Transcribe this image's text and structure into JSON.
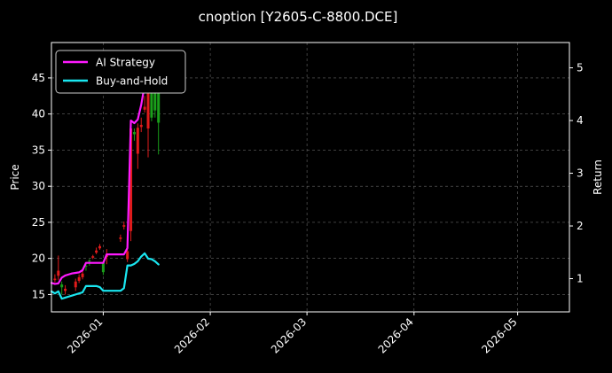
{
  "chart_data": {
    "type": "candlestick+line",
    "title": "cnoption [Y2605-C-8800.DCE]",
    "xlabel": "",
    "ylabel": "Price",
    "ylabel_right": "Return",
    "x_range": [
      "2025-12-17",
      "2026-05-16"
    ],
    "ylim": [
      12.6,
      49.9
    ],
    "ylim_right": [
      0.37,
      5.48
    ],
    "yticks": [
      15,
      20,
      25,
      30,
      35,
      40,
      45
    ],
    "yticks_right": [
      1,
      2,
      3,
      4,
      5
    ],
    "xticks": [
      "2026-01",
      "2026-02",
      "2026-03",
      "2026-04",
      "2026-05"
    ],
    "grid": true,
    "legend_position": "top-left",
    "background": "#000000",
    "up_color": "#1a9e1a",
    "down_color": "#e01b1b",
    "candles": [
      {
        "date": "2025-12-18",
        "open": 17.2,
        "high": 17.8,
        "low": 16.7,
        "close": 17.0
      },
      {
        "date": "2025-12-19",
        "open": 18.3,
        "high": 20.4,
        "low": 17.0,
        "close": 17.6
      },
      {
        "date": "2025-12-20",
        "open": 16.0,
        "high": 16.8,
        "low": 15.0,
        "close": 16.4
      },
      {
        "date": "2025-12-21",
        "open": 15.8,
        "high": 16.3,
        "low": 15.0,
        "close": 15.5
      },
      {
        "date": "2025-12-24",
        "open": 16.8,
        "high": 17.2,
        "low": 15.5,
        "close": 16.0
      },
      {
        "date": "2025-12-25",
        "open": 17.4,
        "high": 17.8,
        "low": 16.6,
        "close": 16.9
      },
      {
        "date": "2025-12-26",
        "open": 17.9,
        "high": 18.3,
        "low": 17.1,
        "close": 17.4
      },
      {
        "date": "2025-12-27",
        "open": 18.9,
        "high": 19.2,
        "low": 18.3,
        "close": 19.0
      },
      {
        "date": "2025-12-28",
        "open": 19.6,
        "high": 19.9,
        "low": 19.0,
        "close": 19.7
      },
      {
        "date": "2025-12-29",
        "open": 20.3,
        "high": 20.5,
        "low": 19.9,
        "close": 20.1
      },
      {
        "date": "2025-12-30",
        "open": 21.1,
        "high": 21.5,
        "low": 20.6,
        "close": 20.8
      },
      {
        "date": "2025-12-31",
        "open": 21.7,
        "high": 22.0,
        "low": 21.2,
        "close": 21.4
      },
      {
        "date": "2026-01-01",
        "open": 18.1,
        "high": 19.6,
        "low": 17.7,
        "close": 19.4
      },
      {
        "date": "2026-01-02",
        "open": 20.6,
        "high": 21.3,
        "low": 19.2,
        "close": 20.2
      },
      {
        "date": "2026-01-06",
        "open": 22.9,
        "high": 23.3,
        "low": 22.3,
        "close": 22.7
      },
      {
        "date": "2026-01-07",
        "open": 24.6,
        "high": 25.1,
        "low": 24.0,
        "close": 24.4
      },
      {
        "date": "2026-01-08",
        "open": 21.0,
        "high": 21.5,
        "low": 19.5,
        "close": 19.9
      },
      {
        "date": "2026-01-09",
        "open": 38.0,
        "high": 38.5,
        "low": 22.4,
        "close": 23.8
      },
      {
        "date": "2026-01-10",
        "open": 37.2,
        "high": 38.0,
        "low": 36.3,
        "close": 37.5
      },
      {
        "date": "2026-01-11",
        "open": 38.1,
        "high": 38.7,
        "low": 32.4,
        "close": 34.5
      },
      {
        "date": "2026-01-12",
        "open": 38.5,
        "high": 39.5,
        "low": 37.5,
        "close": 38.2
      },
      {
        "date": "2026-01-13",
        "open": 41.0,
        "high": 42.5,
        "low": 40.2,
        "close": 40.6
      },
      {
        "date": "2026-01-14",
        "open": 45.0,
        "high": 47.5,
        "low": 34.0,
        "close": 38.0
      },
      {
        "date": "2026-01-15",
        "open": 39.5,
        "high": 47.0,
        "low": 39.0,
        "close": 46.0
      },
      {
        "date": "2026-01-16",
        "open": 40.5,
        "high": 47.0,
        "low": 39.5,
        "close": 44.5
      },
      {
        "date": "2026-01-17",
        "open": 38.8,
        "high": 47.0,
        "low": 34.4,
        "close": 46.8
      }
    ],
    "series": [
      {
        "name": "AI Strategy",
        "color": "#ff1aff",
        "axis": "right",
        "x": [
          "2025-12-17",
          "2025-12-18",
          "2025-12-19",
          "2025-12-20",
          "2025-12-21",
          "2025-12-22",
          "2025-12-23",
          "2025-12-24",
          "2025-12-25",
          "2025-12-26",
          "2025-12-27",
          "2025-12-28",
          "2025-12-29",
          "2025-12-30",
          "2025-12-31",
          "2026-01-01",
          "2026-01-02",
          "2026-01-03",
          "2026-01-04",
          "2026-01-05",
          "2026-01-06",
          "2026-01-07",
          "2026-01-08",
          "2026-01-09",
          "2026-01-10",
          "2026-01-11",
          "2026-01-12",
          "2026-01-13",
          "2026-01-14",
          "2026-01-15",
          "2026-01-16",
          "2026-01-17"
        ],
        "values": [
          0.92,
          0.9,
          0.91,
          1.02,
          1.06,
          1.08,
          1.1,
          1.11,
          1.12,
          1.16,
          1.3,
          1.3,
          1.3,
          1.3,
          1.3,
          1.3,
          1.46,
          1.46,
          1.46,
          1.46,
          1.46,
          1.46,
          1.58,
          4.0,
          3.95,
          4.02,
          4.3,
          4.68,
          5.06,
          5.18,
          5.16,
          5.2
        ]
      },
      {
        "name": "Buy-and-Hold",
        "color": "#1ae6f0",
        "axis": "right",
        "x": [
          "2025-12-17",
          "2025-12-18",
          "2025-12-19",
          "2025-12-20",
          "2025-12-21",
          "2025-12-22",
          "2025-12-23",
          "2025-12-24",
          "2025-12-25",
          "2025-12-26",
          "2025-12-27",
          "2025-12-28",
          "2025-12-29",
          "2025-12-30",
          "2025-12-31",
          "2026-01-01",
          "2026-01-02",
          "2026-01-03",
          "2026-01-04",
          "2026-01-05",
          "2026-01-06",
          "2026-01-07",
          "2026-01-08",
          "2026-01-09",
          "2026-01-10",
          "2026-01-11",
          "2026-01-12",
          "2026-01-13",
          "2026-01-14",
          "2026-01-15",
          "2026-01-16",
          "2026-01-17"
        ],
        "values": [
          0.76,
          0.72,
          0.76,
          0.62,
          0.64,
          0.66,
          0.68,
          0.7,
          0.72,
          0.74,
          0.86,
          0.86,
          0.86,
          0.86,
          0.84,
          0.77,
          0.77,
          0.77,
          0.77,
          0.77,
          0.77,
          0.82,
          1.25,
          1.25,
          1.28,
          1.33,
          1.42,
          1.48,
          1.38,
          1.37,
          1.33,
          1.27
        ]
      }
    ]
  }
}
